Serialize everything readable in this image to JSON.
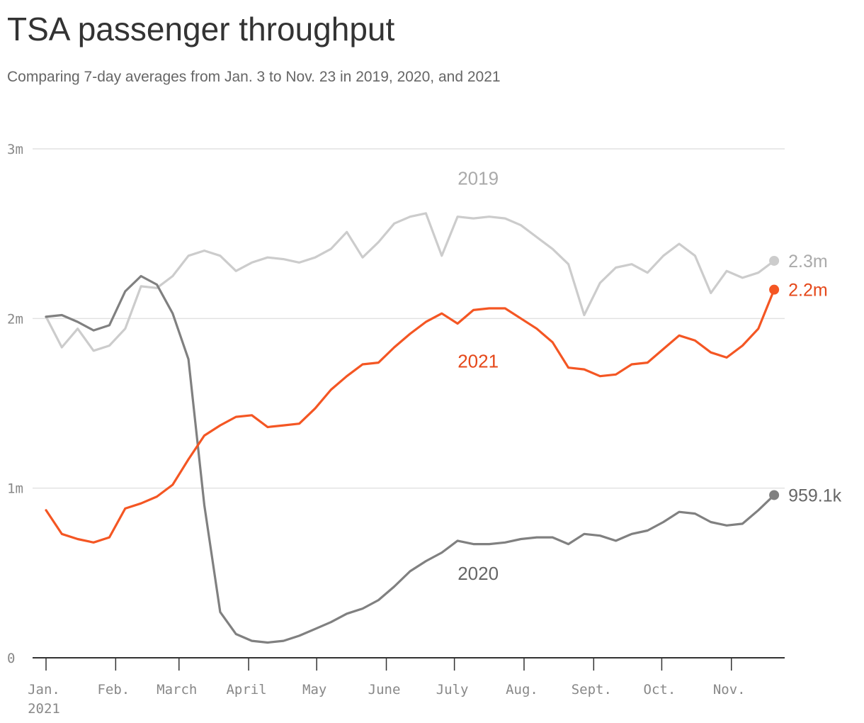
{
  "chart_data": {
    "type": "line",
    "title": "TSA passenger throughput",
    "subtitle": "Comparing 7-day averages from Jan. 3 to Nov. 23 in 2019, 2020, and 2021",
    "xlabel": "",
    "ylabel": "",
    "ylim": [
      0,
      3000000
    ],
    "y_ticks": [
      {
        "value": 0,
        "label": "0"
      },
      {
        "value": 1000000,
        "label": "1m"
      },
      {
        "value": 2000000,
        "label": "2m"
      },
      {
        "value": 3000000,
        "label": "3m"
      }
    ],
    "x_ticks": [
      {
        "week": 0,
        "label": "Jan.",
        "sublabel": "2021"
      },
      {
        "week": 4.4,
        "label": "Feb."
      },
      {
        "week": 8.4,
        "label": "March"
      },
      {
        "week": 12.8,
        "label": "April"
      },
      {
        "week": 17.1,
        "label": "May"
      },
      {
        "week": 21.5,
        "label": "June"
      },
      {
        "week": 25.8,
        "label": "July"
      },
      {
        "week": 30.2,
        "label": "Aug."
      },
      {
        "week": 34.6,
        "label": "Sept."
      },
      {
        "week": 38.9,
        "label": "Oct."
      },
      {
        "week": 43.3,
        "label": "Nov."
      }
    ],
    "grid": true,
    "series": [
      {
        "name": "2019",
        "color": "#cccccc",
        "label_color": "#aaaaaa",
        "end_label": "2.3m",
        "label_position": {
          "week": 27.3,
          "value": 2790000
        },
        "values": [
          2010000,
          1830000,
          1940000,
          1810000,
          1840000,
          1940000,
          2190000,
          2180000,
          2250000,
          2370000,
          2400000,
          2370000,
          2280000,
          2330000,
          2360000,
          2350000,
          2330000,
          2360000,
          2410000,
          2510000,
          2360000,
          2450000,
          2560000,
          2600000,
          2620000,
          2370000,
          2600000,
          2590000,
          2600000,
          2590000,
          2550000,
          2480000,
          2410000,
          2320000,
          2020000,
          2210000,
          2300000,
          2320000,
          2270000,
          2370000,
          2440000,
          2370000,
          2150000,
          2280000,
          2240000,
          2270000,
          2340000
        ]
      },
      {
        "name": "2020",
        "color": "#808080",
        "label_color": "#666666",
        "end_label": "959.1k",
        "label_position": {
          "week": 27.3,
          "value": 460000
        },
        "values": [
          2010000,
          2020000,
          1980000,
          1930000,
          1960000,
          2160000,
          2250000,
          2200000,
          2030000,
          1760000,
          900000,
          270000,
          140000,
          100000,
          90000,
          100000,
          130000,
          170000,
          210000,
          260000,
          290000,
          340000,
          420000,
          510000,
          570000,
          620000,
          690000,
          670000,
          670000,
          680000,
          700000,
          710000,
          710000,
          670000,
          730000,
          720000,
          690000,
          730000,
          750000,
          800000,
          860000,
          850000,
          800000,
          780000,
          790000,
          870000,
          959100
        ]
      },
      {
        "name": "2021",
        "color": "#f45623",
        "label_color": "#e5481a",
        "end_label": "2.2m",
        "label_position": {
          "week": 27.3,
          "value": 1710000
        },
        "values": [
          870000,
          730000,
          700000,
          680000,
          710000,
          880000,
          910000,
          950000,
          1020000,
          1170000,
          1310000,
          1370000,
          1420000,
          1430000,
          1360000,
          1370000,
          1380000,
          1470000,
          1580000,
          1660000,
          1730000,
          1740000,
          1830000,
          1910000,
          1980000,
          2030000,
          1970000,
          2050000,
          2060000,
          2060000,
          2000000,
          1940000,
          1860000,
          1710000,
          1700000,
          1660000,
          1670000,
          1730000,
          1740000,
          1820000,
          1900000,
          1870000,
          1800000,
          1770000,
          1840000,
          1940000,
          2170000
        ]
      }
    ]
  }
}
